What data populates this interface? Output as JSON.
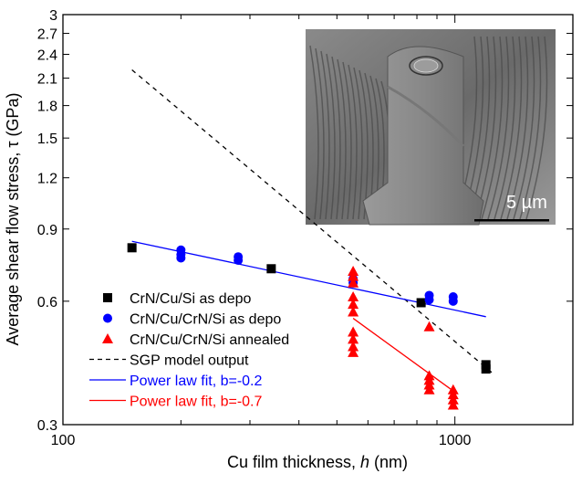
{
  "chart_data": {
    "type": "scatter",
    "xlabel": "Cu film thickness, h (nm)",
    "xlabel_parts": [
      "Cu film thickness, ",
      "h",
      " (nm)"
    ],
    "ylabel": "Average shear flow stress, τ (GPa)",
    "xscale": "log",
    "yscale": "log",
    "xlim": [
      100,
      2000
    ],
    "ylim": [
      0.3,
      3
    ],
    "xticks": [
      100,
      1000
    ],
    "xtick_labels": [
      "100",
      "1000"
    ],
    "xminor": [
      200,
      300,
      400,
      500,
      600,
      700,
      800,
      900
    ],
    "yticks": [
      0.3,
      0.6,
      0.9,
      1.2,
      1.5,
      1.8,
      2.1,
      2.4,
      2.7,
      3
    ],
    "ytick_labels": [
      "0.3",
      "0.6",
      "0.9",
      "1.2",
      "1.5",
      "1.8",
      "2.1",
      "2.4",
      "2.7",
      "3"
    ],
    "grid": false,
    "legend_placement": "bottom-left",
    "series": [
      {
        "name": "CrN/Cu/Si as depo",
        "kind": "scatter",
        "marker": "square",
        "color": "#000000",
        "points": [
          [
            150,
            0.81
          ],
          [
            340,
            0.72
          ],
          [
            820,
            0.595
          ],
          [
            1200,
            0.42
          ],
          [
            1200,
            0.41
          ]
        ]
      },
      {
        "name": "CrN/Cu/CrN/Si as depo",
        "kind": "scatter",
        "marker": "circle",
        "color": "#0000ff",
        "points": [
          [
            200,
            0.8
          ],
          [
            200,
            0.78
          ],
          [
            200,
            0.765
          ],
          [
            280,
            0.77
          ],
          [
            280,
            0.755
          ],
          [
            550,
            0.68
          ],
          [
            550,
            0.665
          ],
          [
            860,
            0.62
          ],
          [
            860,
            0.605
          ],
          [
            990,
            0.615
          ],
          [
            990,
            0.6
          ]
        ]
      },
      {
        "name": "CrN/Cu/CrN/Si annealed",
        "kind": "scatter",
        "marker": "triangle",
        "color": "#ff0000",
        "points": [
          [
            550,
            0.71
          ],
          [
            550,
            0.69
          ],
          [
            550,
            0.665
          ],
          [
            550,
            0.615
          ],
          [
            550,
            0.59
          ],
          [
            550,
            0.565
          ],
          [
            550,
            0.505
          ],
          [
            550,
            0.485
          ],
          [
            550,
            0.465
          ],
          [
            550,
            0.45
          ],
          [
            860,
            0.52
          ],
          [
            860,
            0.395
          ],
          [
            860,
            0.385
          ],
          [
            860,
            0.375
          ],
          [
            860,
            0.365
          ],
          [
            990,
            0.365
          ],
          [
            990,
            0.355
          ],
          [
            990,
            0.345
          ],
          [
            990,
            0.335
          ]
        ]
      },
      {
        "name": "SGP model output",
        "kind": "line",
        "dash": true,
        "color": "#000000",
        "points": [
          [
            150,
            2.2
          ],
          [
            1250,
            0.4
          ]
        ]
      },
      {
        "name": "Power law fit, b=-0.2",
        "kind": "line",
        "color": "#0000ff",
        "points": [
          [
            150,
            0.84
          ],
          [
            1200,
            0.55
          ]
        ]
      },
      {
        "name": "Power law fit, b=-0.7",
        "kind": "line",
        "color": "#ff0000",
        "points": [
          [
            550,
            0.545
          ],
          [
            1000,
            0.36
          ]
        ]
      }
    ],
    "inset": {
      "kind": "SEM micrograph of micropillar",
      "scale_bar_label": "5 µm"
    }
  }
}
